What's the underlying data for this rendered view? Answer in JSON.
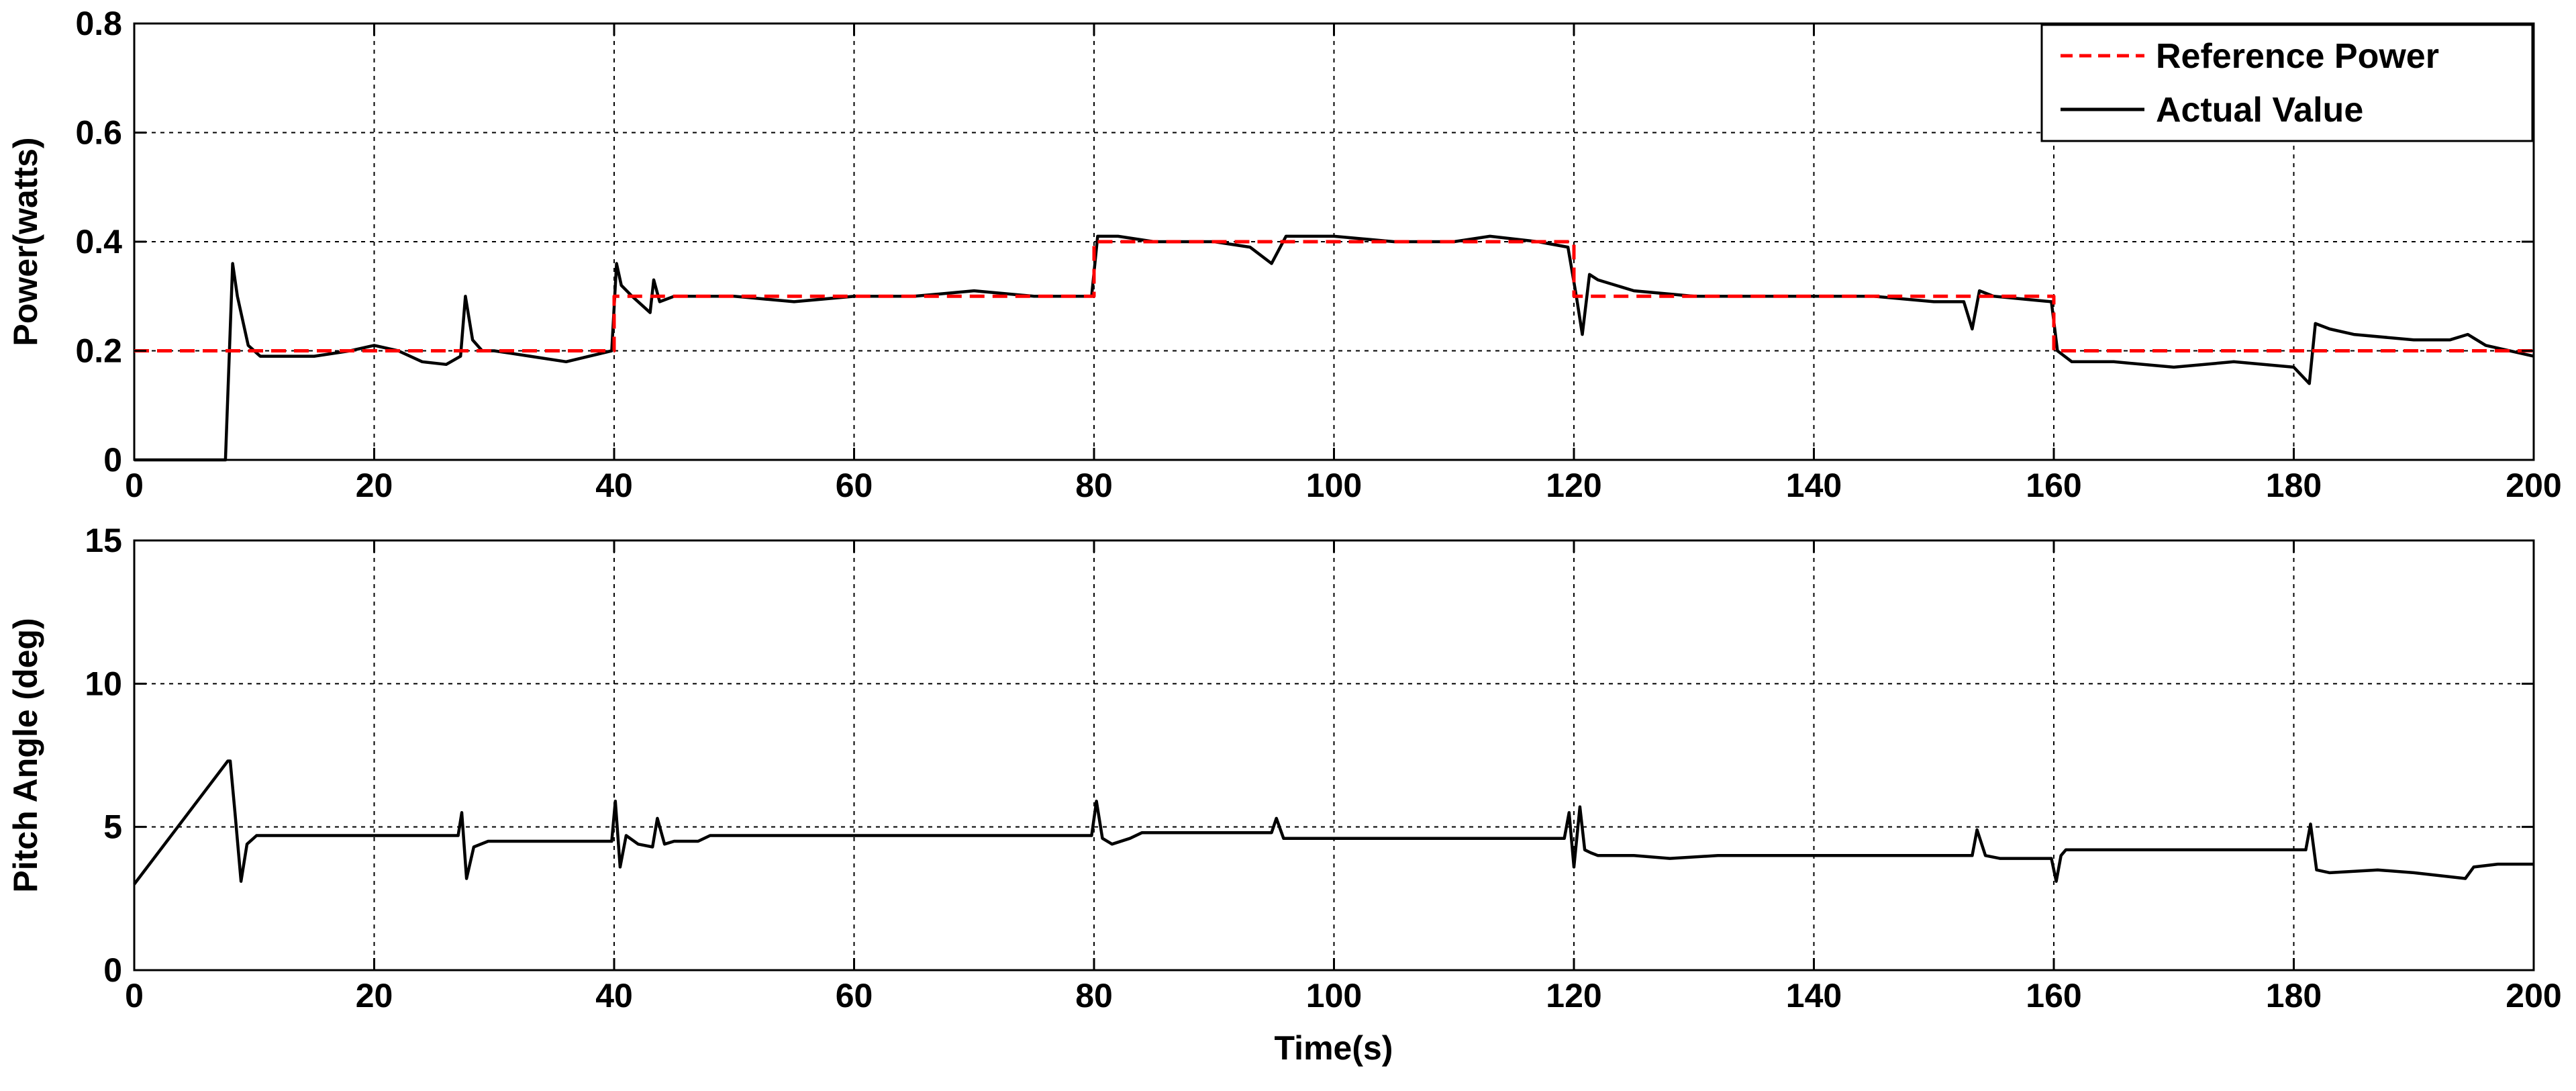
{
  "chart_data": [
    {
      "type": "line",
      "title": "",
      "xlabel": "",
      "ylabel": "Power(watts)",
      "xlim": [
        0,
        200
      ],
      "ylim": [
        0,
        0.8
      ],
      "xticks": [
        0,
        20,
        40,
        60,
        80,
        100,
        120,
        140,
        160,
        180,
        200
      ],
      "yticks": [
        0,
        0.2,
        0.4,
        0.6,
        0.8
      ],
      "xtick_labels": [
        "0",
        "20",
        "40",
        "60",
        "80",
        "100",
        "120",
        "140",
        "160",
        "180",
        "200"
      ],
      "ytick_labels": [
        "0",
        "0.2",
        "0.4",
        "0.6",
        "0.8"
      ],
      "grid": true,
      "legend": "top-right",
      "series": [
        {
          "name": "Reference Power",
          "style": "dashed",
          "color": "#ff0000",
          "x": [
            0,
            40,
            40,
            80,
            80,
            120,
            120,
            160,
            160,
            200
          ],
          "y": [
            0.2,
            0.2,
            0.3,
            0.3,
            0.4,
            0.4,
            0.3,
            0.3,
            0.2,
            0.2
          ]
        },
        {
          "name": "Actual Value",
          "style": "solid",
          "color": "#000000",
          "x": [
            0,
            7.6,
            8.2,
            8.6,
            9.5,
            10.5,
            12,
            15,
            18,
            20,
            22,
            24,
            26,
            27.2,
            27.6,
            28.2,
            29,
            30,
            33,
            36,
            39.8,
            40.2,
            40.6,
            41.5,
            43,
            43.3,
            43.8,
            45,
            50,
            55,
            60,
            65,
            70,
            75,
            79.8,
            80.3,
            82,
            85,
            90,
            93,
            94.8,
            96,
            100,
            105,
            110,
            113,
            117,
            119.5,
            120.2,
            120.7,
            121.3,
            122,
            125,
            130,
            135,
            140,
            145,
            150,
            152.5,
            153.2,
            153.8,
            155,
            159.8,
            160.3,
            161.5,
            165,
            170,
            175,
            180,
            181.3,
            181.8,
            183,
            185,
            190,
            193,
            194.5,
            196,
            200
          ],
          "y": [
            0,
            0,
            0.36,
            0.3,
            0.21,
            0.19,
            0.19,
            0.19,
            0.2,
            0.21,
            0.2,
            0.18,
            0.175,
            0.19,
            0.3,
            0.22,
            0.2,
            0.2,
            0.19,
            0.18,
            0.2,
            0.36,
            0.32,
            0.3,
            0.27,
            0.33,
            0.29,
            0.3,
            0.3,
            0.29,
            0.3,
            0.3,
            0.31,
            0.3,
            0.3,
            0.41,
            0.41,
            0.4,
            0.4,
            0.39,
            0.36,
            0.41,
            0.41,
            0.4,
            0.4,
            0.41,
            0.4,
            0.39,
            0.3,
            0.23,
            0.34,
            0.33,
            0.31,
            0.3,
            0.3,
            0.3,
            0.3,
            0.29,
            0.29,
            0.24,
            0.31,
            0.3,
            0.29,
            0.2,
            0.18,
            0.18,
            0.17,
            0.18,
            0.17,
            0.14,
            0.25,
            0.24,
            0.23,
            0.22,
            0.22,
            0.23,
            0.21,
            0.19
          ]
        }
      ],
      "legend_entries": [
        "Reference Power",
        "Actual Value"
      ]
    },
    {
      "type": "line",
      "title": "",
      "xlabel": "Time(s)",
      "ylabel": "Pitch Angle (deg)",
      "xlim": [
        0,
        200
      ],
      "ylim": [
        0,
        15
      ],
      "xticks": [
        0,
        20,
        40,
        60,
        80,
        100,
        120,
        140,
        160,
        180,
        200
      ],
      "yticks": [
        0,
        5,
        10,
        15
      ],
      "xtick_labels": [
        "0",
        "20",
        "40",
        "60",
        "80",
        "100",
        "120",
        "140",
        "160",
        "180",
        "200"
      ],
      "ytick_labels": [
        "0",
        "5",
        "10",
        "15"
      ],
      "grid": true,
      "series": [
        {
          "style": "solid",
          "color": "#000000",
          "x": [
            0,
            7.8,
            8.0,
            8.4,
            8.9,
            9.4,
            10.2,
            11.5,
            27.0,
            27.3,
            27.7,
            28.3,
            29.5,
            31,
            39.8,
            40.1,
            40.5,
            41,
            42,
            43.2,
            43.6,
            44.2,
            45,
            47,
            48,
            79.8,
            80.2,
            80.7,
            81.5,
            83,
            84,
            94.8,
            95.2,
            95.8,
            97,
            119.2,
            119.6,
            120.0,
            120.5,
            120.9,
            121.4,
            122,
            125,
            128,
            132,
            153.2,
            153.6,
            154.3,
            155.5,
            159.8,
            160.2,
            160.6,
            161,
            181,
            181.4,
            181.9,
            183,
            187,
            190,
            194.3,
            195,
            197,
            200
          ],
          "y": [
            3,
            7.3,
            7.3,
            5.5,
            3.1,
            4.4,
            4.7,
            4.7,
            4.7,
            5.5,
            3.2,
            4.3,
            4.5,
            4.5,
            4.5,
            5.9,
            3.6,
            4.7,
            4.4,
            4.3,
            5.3,
            4.4,
            4.5,
            4.5,
            4.7,
            4.7,
            5.9,
            4.6,
            4.4,
            4.6,
            4.8,
            4.8,
            5.3,
            4.6,
            4.6,
            4.6,
            5.5,
            3.6,
            5.7,
            4.2,
            4.1,
            4.0,
            4.0,
            3.9,
            4.0,
            4.0,
            4.9,
            4.0,
            3.9,
            3.9,
            3.1,
            4.0,
            4.2,
            4.2,
            5.1,
            3.5,
            3.4,
            3.5,
            3.4,
            3.2,
            3.6,
            3.7,
            3.7
          ]
        }
      ]
    }
  ]
}
